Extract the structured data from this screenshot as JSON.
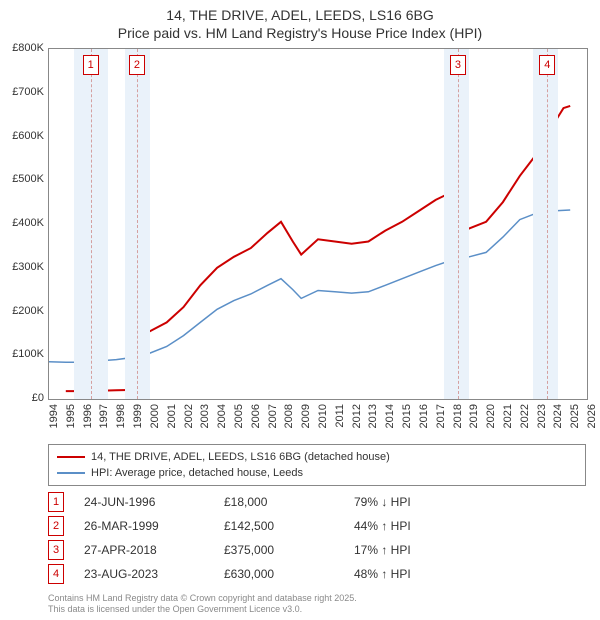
{
  "title": {
    "line1": "14, THE DRIVE, ADEL, LEEDS, LS16 6BG",
    "line2": "Price paid vs. HM Land Registry's House Price Index (HPI)"
  },
  "chart": {
    "type": "line",
    "background_color": "#ffffff",
    "border_color": "#888888",
    "x_axis": {
      "min": 1994,
      "max": 2026,
      "ticks": [
        1994,
        1995,
        1996,
        1997,
        1998,
        1999,
        2000,
        2001,
        2002,
        2003,
        2004,
        2005,
        2006,
        2007,
        2008,
        2009,
        2010,
        2011,
        2012,
        2013,
        2014,
        2015,
        2016,
        2017,
        2018,
        2019,
        2020,
        2021,
        2022,
        2023,
        2024,
        2025,
        2026
      ],
      "label_fontsize": 11,
      "rotation": -90
    },
    "y_axis": {
      "min": 0,
      "max": 800000,
      "ticks": [
        0,
        100000,
        200000,
        300000,
        400000,
        500000,
        600000,
        700000,
        800000
      ],
      "tick_labels": [
        "£0",
        "£100K",
        "£200K",
        "£300K",
        "£400K",
        "£500K",
        "£600K",
        "£700K",
        "£800K"
      ],
      "label_fontsize": 11
    },
    "shade_bands": [
      {
        "start": 1995.5,
        "end": 1997.5,
        "color": "#eaf2fa"
      },
      {
        "start": 1998.5,
        "end": 2000.0,
        "color": "#eaf2fa"
      },
      {
        "start": 2017.5,
        "end": 2019.0,
        "color": "#eaf2fa"
      },
      {
        "start": 2022.8,
        "end": 2024.3,
        "color": "#eaf2fa"
      }
    ],
    "event_lines": [
      {
        "year": 1996.48,
        "label": "1"
      },
      {
        "year": 1999.23,
        "label": "2"
      },
      {
        "year": 2018.32,
        "label": "3"
      },
      {
        "year": 2023.64,
        "label": "4"
      }
    ],
    "event_line_color": "#d4a0a0",
    "series": [
      {
        "name": "14, THE DRIVE, ADEL, LEEDS, LS16 6BG (detached house)",
        "color": "#cc0000",
        "line_width": 2,
        "points": [
          [
            1995.0,
            18000
          ],
          [
            1996.48,
            18000
          ],
          [
            1996.48,
            18000
          ],
          [
            1997.0,
            19000
          ],
          [
            1998.0,
            20000
          ],
          [
            1999.23,
            21000
          ],
          [
            1999.23,
            142500
          ],
          [
            2000.0,
            155000
          ],
          [
            2001.0,
            175000
          ],
          [
            2002.0,
            210000
          ],
          [
            2003.0,
            260000
          ],
          [
            2004.0,
            300000
          ],
          [
            2005.0,
            325000
          ],
          [
            2006.0,
            345000
          ],
          [
            2007.0,
            380000
          ],
          [
            2007.8,
            405000
          ],
          [
            2008.5,
            360000
          ],
          [
            2009.0,
            330000
          ],
          [
            2010.0,
            365000
          ],
          [
            2011.0,
            360000
          ],
          [
            2012.0,
            355000
          ],
          [
            2013.0,
            360000
          ],
          [
            2014.0,
            385000
          ],
          [
            2015.0,
            405000
          ],
          [
            2016.0,
            430000
          ],
          [
            2017.0,
            455000
          ],
          [
            2017.8,
            470000
          ],
          [
            2018.32,
            375000
          ],
          [
            2018.32,
            375000
          ],
          [
            2019.0,
            390000
          ],
          [
            2020.0,
            405000
          ],
          [
            2021.0,
            450000
          ],
          [
            2022.0,
            510000
          ],
          [
            2023.0,
            560000
          ],
          [
            2023.64,
            630000
          ],
          [
            2023.64,
            630000
          ],
          [
            2024.2,
            640000
          ],
          [
            2024.6,
            665000
          ],
          [
            2025.0,
            670000
          ]
        ],
        "markers": [
          [
            1996.48,
            18000
          ],
          [
            1999.23,
            142500
          ],
          [
            2018.32,
            375000
          ],
          [
            2023.64,
            630000
          ]
        ],
        "marker_color": "#cc0000",
        "marker_radius": 3
      },
      {
        "name": "HPI: Average price, detached house, Leeds",
        "color": "#5b8fc7",
        "line_width": 1.5,
        "points": [
          [
            1994.0,
            85000
          ],
          [
            1995.0,
            84000
          ],
          [
            1996.0,
            84000
          ],
          [
            1997.0,
            87000
          ],
          [
            1998.0,
            90000
          ],
          [
            1999.0,
            95000
          ],
          [
            2000.0,
            105000
          ],
          [
            2001.0,
            120000
          ],
          [
            2002.0,
            145000
          ],
          [
            2003.0,
            175000
          ],
          [
            2004.0,
            205000
          ],
          [
            2005.0,
            225000
          ],
          [
            2006.0,
            240000
          ],
          [
            2007.0,
            260000
          ],
          [
            2007.8,
            275000
          ],
          [
            2008.5,
            250000
          ],
          [
            2009.0,
            230000
          ],
          [
            2010.0,
            248000
          ],
          [
            2011.0,
            245000
          ],
          [
            2012.0,
            242000
          ],
          [
            2013.0,
            245000
          ],
          [
            2014.0,
            260000
          ],
          [
            2015.0,
            275000
          ],
          [
            2016.0,
            290000
          ],
          [
            2017.0,
            305000
          ],
          [
            2018.0,
            318000
          ],
          [
            2019.0,
            325000
          ],
          [
            2020.0,
            335000
          ],
          [
            2021.0,
            370000
          ],
          [
            2022.0,
            410000
          ],
          [
            2023.0,
            425000
          ],
          [
            2024.0,
            430000
          ],
          [
            2025.0,
            432000
          ]
        ]
      }
    ],
    "marker_boxes": [
      {
        "label": "1",
        "year": 1996.48
      },
      {
        "label": "2",
        "year": 1999.23
      },
      {
        "label": "3",
        "year": 2018.32
      },
      {
        "label": "4",
        "year": 2023.64
      }
    ]
  },
  "legend": {
    "border_color": "#888888",
    "fontsize": 11,
    "items": [
      {
        "label": "14, THE DRIVE, ADEL, LEEDS, LS16 6BG (detached house)",
        "color": "#cc0000"
      },
      {
        "label": "HPI: Average price, detached house, Leeds",
        "color": "#5b8fc7"
      }
    ]
  },
  "events": [
    {
      "num": "1",
      "date": "24-JUN-1996",
      "price": "£18,000",
      "diff": "79% ↓ HPI"
    },
    {
      "num": "2",
      "date": "26-MAR-1999",
      "price": "£142,500",
      "diff": "44% ↑ HPI"
    },
    {
      "num": "3",
      "date": "27-APR-2018",
      "price": "£375,000",
      "diff": "17% ↑ HPI"
    },
    {
      "num": "4",
      "date": "23-AUG-2023",
      "price": "£630,000",
      "diff": "48% ↑ HPI"
    }
  ],
  "footer": {
    "line1": "Contains HM Land Registry data © Crown copyright and database right 2025.",
    "line2": "This data is licensed under the Open Government Licence v3.0.",
    "color": "#8a8a8a",
    "fontsize": 9
  }
}
